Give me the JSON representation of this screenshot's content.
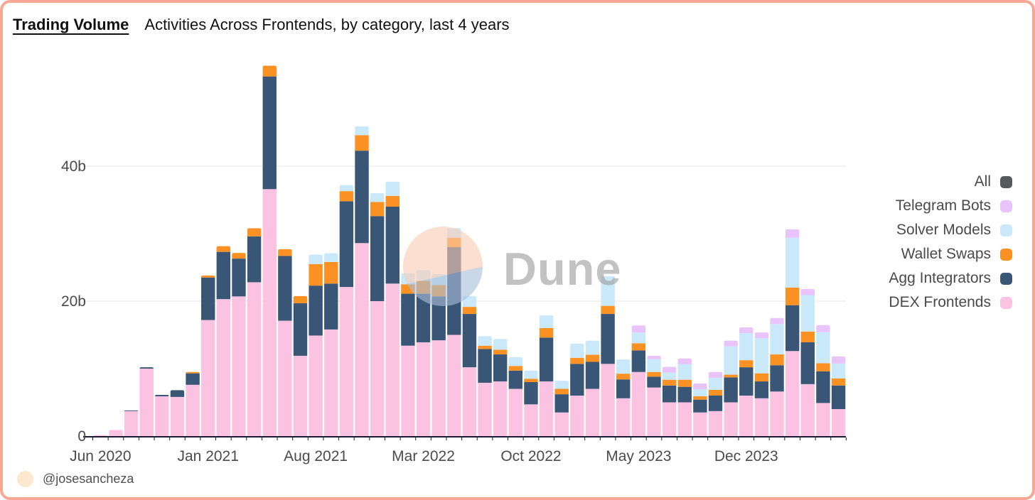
{
  "header": {
    "title": "Trading Volume",
    "subtitle": "Activities Across Frontends, by category, last 4 years"
  },
  "footer": {
    "handle": "@josesancheza"
  },
  "watermark": {
    "text": "Dune"
  },
  "colors": {
    "card_border": "#f8a795",
    "axis": "#1b1b33",
    "grid": "#ededed",
    "tick_label": "#4b4b4b",
    "legend_text": "#4a4a4a",
    "watermark_peach": "#f8cbb5",
    "watermark_bluegray": "#a9bed8",
    "watermark_text": "#9e9e9e",
    "footer_avatar": "#fce8cf"
  },
  "legend": [
    {
      "label": "All",
      "color": "#58595b"
    },
    {
      "label": "Telegram Bots",
      "color": "#e9c4fb"
    },
    {
      "label": "Solver Models",
      "color": "#c9e9fb"
    },
    {
      "label": "Wallet Swaps",
      "color": "#fb9122"
    },
    {
      "label": "Agg Integrators",
      "color": "#3a5677"
    },
    {
      "label": "DEX Frontends",
      "color": "#fbc3e1"
    }
  ],
  "chart_data": {
    "type": "bar",
    "stacked": true,
    "unit": "billions USD",
    "title": "Trading Volume",
    "subtitle": "Activities Across Frontends, by category, last 4 years",
    "legend_position": "right",
    "grid": "horizontal-faint",
    "ylim": [
      0,
      56
    ],
    "y_ticks": [
      {
        "value": 0,
        "label": "0"
      },
      {
        "value": 20,
        "label": "20b"
      },
      {
        "value": 40,
        "label": "40b"
      }
    ],
    "x": [
      "Jun 2020",
      "Jul 2020",
      "Aug 2020",
      "Sep 2020",
      "Oct 2020",
      "Nov 2020",
      "Dec 2020",
      "Jan 2021",
      "Feb 2021",
      "Mar 2021",
      "Apr 2021",
      "May 2021",
      "Jun 2021",
      "Jul 2021",
      "Aug 2021",
      "Sep 2021",
      "Oct 2021",
      "Nov 2021",
      "Dec 2021",
      "Jan 2022",
      "Feb 2022",
      "Mar 2022",
      "Apr 2022",
      "May 2022",
      "Jun 2022",
      "Jul 2022",
      "Aug 2022",
      "Sep 2022",
      "Oct 2022",
      "Nov 2022",
      "Dec 2022",
      "Jan 2023",
      "Feb 2023",
      "Mar 2023",
      "Apr 2023",
      "May 2023",
      "Jun 2023",
      "Jul 2023",
      "Aug 2023",
      "Sep 2023",
      "Oct 2023",
      "Nov 2023",
      "Dec 2023",
      "Jan 2024",
      "Feb 2024",
      "Mar 2024",
      "Apr 2024",
      "May 2024",
      "Jun 2024"
    ],
    "x_ticks": [
      {
        "index": 0,
        "label": "Jun 2020"
      },
      {
        "index": 7,
        "label": "Jan 2021"
      },
      {
        "index": 14,
        "label": "Aug 2021"
      },
      {
        "index": 21,
        "label": "Mar 2022"
      },
      {
        "index": 28,
        "label": "Oct 2022"
      },
      {
        "index": 35,
        "label": "May 2023"
      },
      {
        "index": 42,
        "label": "Dec 2023"
      }
    ],
    "series": [
      {
        "name": "DEX Frontends",
        "color": "#fbc3e1",
        "values": [
          0.15,
          0.9,
          3.7,
          10,
          5.9,
          5.8,
          7.6,
          17.2,
          20.3,
          20.7,
          22.8,
          36.6,
          17.1,
          11.9,
          14.9,
          15.8,
          22.1,
          28.6,
          20,
          22.6,
          13.4,
          13.9,
          14.2,
          15,
          10.2,
          7.9,
          8.1,
          7,
          4.7,
          8.1,
          3.5,
          6,
          7,
          10.7,
          5.6,
          9.5,
          7.2,
          5,
          5,
          3.5,
          3.7,
          5,
          6,
          5.6,
          6.6,
          12.6,
          7.7,
          4.9,
          4
        ]
      },
      {
        "name": "Agg Integrators",
        "color": "#3a5677",
        "values": [
          0,
          0,
          0.1,
          0.2,
          0.2,
          1,
          1.7,
          6.3,
          7,
          5.6,
          6.8,
          16.7,
          9.6,
          7.8,
          7.4,
          6.8,
          12.7,
          13.7,
          12.6,
          11.4,
          7.7,
          7.2,
          6.5,
          13,
          7.9,
          5,
          4,
          2.7,
          3.3,
          6.5,
          2.7,
          4.7,
          4,
          7.4,
          2.8,
          3.2,
          1.6,
          2.5,
          2.3,
          1.9,
          2.3,
          3.7,
          4.2,
          2.5,
          3.9,
          6.8,
          6.2,
          4.7,
          3.5
        ]
      },
      {
        "name": "Wallet Swaps",
        "color": "#fb9122",
        "values": [
          0,
          0,
          0,
          0,
          0,
          0,
          0.2,
          0.3,
          0.85,
          0.85,
          1.2,
          1.6,
          1,
          1.05,
          3.2,
          3.2,
          1.5,
          2.3,
          2.1,
          1.6,
          1.4,
          1.9,
          1.7,
          1.4,
          1.05,
          0.5,
          0.7,
          0.7,
          0.5,
          1.4,
          0.8,
          0.9,
          1.05,
          1.2,
          0.85,
          1.05,
          0.7,
          0.85,
          1.05,
          0.5,
          0.85,
          0.4,
          1.05,
          1.2,
          1.6,
          2.6,
          1.6,
          1.2,
          1.05
        ]
      },
      {
        "name": "Solver Models",
        "color": "#c9e9fb",
        "values": [
          0,
          0,
          0,
          0,
          0,
          0,
          0,
          0,
          0,
          0,
          0,
          0,
          0,
          0,
          1.4,
          1.3,
          0.9,
          1.3,
          1.3,
          2.1,
          1.6,
          1.6,
          1.6,
          1.4,
          1.6,
          1.4,
          1.6,
          1.3,
          1.2,
          1.9,
          1.2,
          2.1,
          2.1,
          4.4,
          2.1,
          1.6,
          1.9,
          1.05,
          2.3,
          1.05,
          1.8,
          4.2,
          4,
          5.2,
          4.5,
          7.4,
          5.4,
          4.6,
          2.2
        ]
      },
      {
        "name": "Telegram Bots",
        "color": "#e9c4fb",
        "values": [
          0,
          0,
          0,
          0,
          0,
          0,
          0,
          0,
          0,
          0,
          0,
          0,
          0,
          0,
          0,
          0,
          0,
          0,
          0,
          0,
          0,
          0,
          0,
          0,
          0,
          0,
          0,
          0,
          0,
          0,
          0,
          0,
          0,
          0,
          0,
          1.05,
          0.5,
          0.85,
          0.85,
          0.85,
          0.85,
          0.85,
          0.85,
          0.85,
          0.9,
          1.25,
          0.9,
          1.05,
          1.05
        ]
      }
    ]
  }
}
